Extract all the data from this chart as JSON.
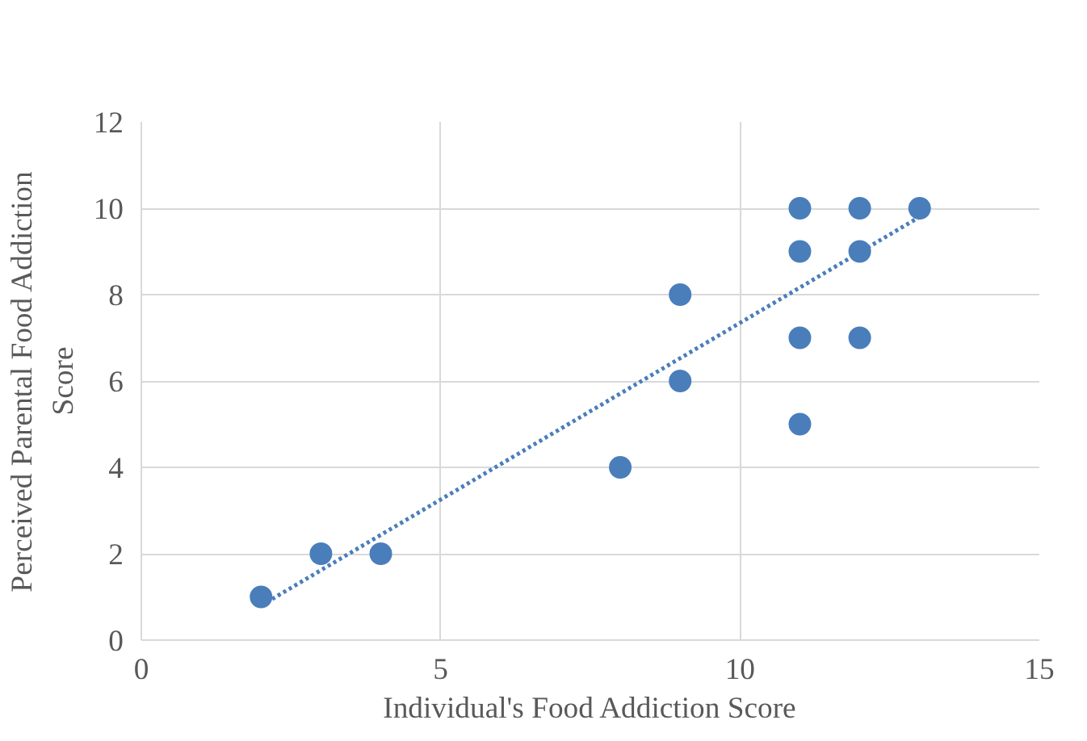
{
  "chart_data": {
    "type": "scatter",
    "xlabel": "Individual's Food Addiction Score",
    "ylabel": "Perceived Parental Food Addiction Score",
    "xlim": [
      0,
      15
    ],
    "ylim": [
      0,
      12
    ],
    "xticks": [
      0,
      5,
      10,
      15
    ],
    "yticks": [
      0,
      2,
      4,
      6,
      8,
      10,
      12
    ],
    "grid": true,
    "series": [
      {
        "marker": "circle",
        "color": "#4a7ebb",
        "x": [
          2,
          3,
          4,
          8,
          9,
          9,
          11,
          11,
          11,
          11,
          12,
          12,
          12,
          13
        ],
        "values": [
          1,
          2,
          2,
          4,
          8,
          6,
          10,
          9,
          7,
          5,
          10,
          9,
          7,
          10
        ]
      },
      {
        "type": "line",
        "line_style": "dotted",
        "marker": "none",
        "color": "#4a7ebb",
        "x": [
          2,
          13
        ],
        "values": [
          0.8,
          9.8
        ]
      }
    ]
  }
}
